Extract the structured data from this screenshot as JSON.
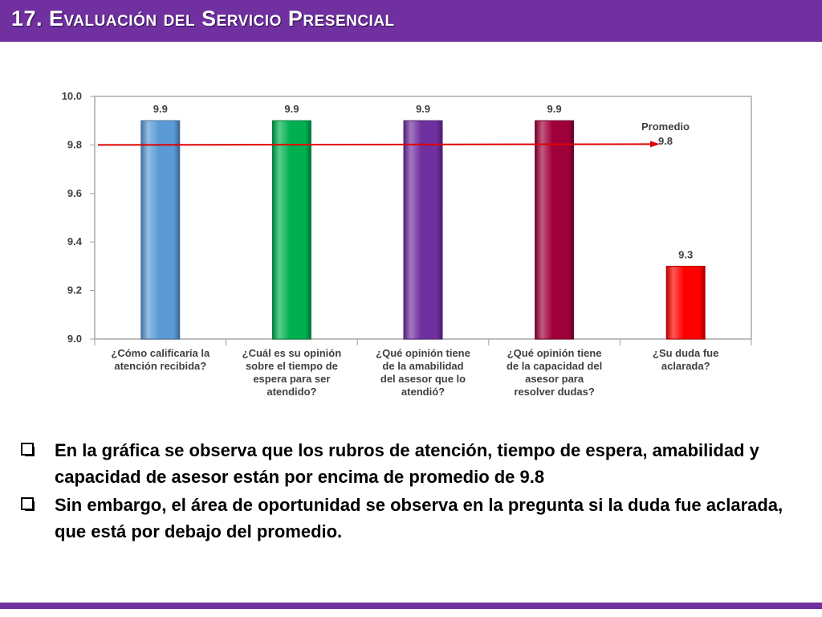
{
  "header": {
    "title": "17. Evaluación del Servicio Presencial"
  },
  "colors": {
    "header_bg": "#7030a0",
    "average_line": "#e00000"
  },
  "chart_data": {
    "type": "bar",
    "categories": [
      [
        "¿Cómo calificaría la",
        "atención recibida?"
      ],
      [
        "¿Cuál es su opinión",
        "sobre el tiempo de",
        "espera para ser",
        "atendido?"
      ],
      [
        "¿Qué opinión tiene",
        "de la amabilidad",
        "del asesor que lo",
        "atendió?"
      ],
      [
        "¿Qué opinión tiene",
        "de la capacidad del",
        "asesor para",
        "resolver dudas?"
      ],
      [
        "¿Su duda fue",
        "aclarada?"
      ]
    ],
    "values": [
      9.9,
      9.9,
      9.9,
      9.9,
      9.3
    ],
    "value_labels": [
      "9.9",
      "9.9",
      "9.9",
      "9.9",
      "9.3"
    ],
    "bar_colors": [
      "#5b9bd5",
      "#00b050",
      "#7030a0",
      "#a0003a",
      "#ff0000"
    ],
    "ylim": [
      9.0,
      10.0
    ],
    "yticks": [
      "10.0",
      "9.8",
      "9.6",
      "9.4",
      "9.2",
      "9.0"
    ],
    "ytick_values": [
      10.0,
      9.8,
      9.6,
      9.4,
      9.2,
      9.0
    ],
    "average": {
      "label": "Promedio",
      "value_label": "9.8",
      "value": 9.8
    },
    "grid": false,
    "title": "",
    "xlabel": "",
    "ylabel": ""
  },
  "bullets": [
    "En la gráfica se observa que los rubros de atención, tiempo de espera, amabilidad y capacidad de asesor están por encima de promedio de 9.8",
    "Sin embargo, el área de oportunidad se observa en la pregunta si la duda fue aclarada, que está por debajo del promedio."
  ]
}
